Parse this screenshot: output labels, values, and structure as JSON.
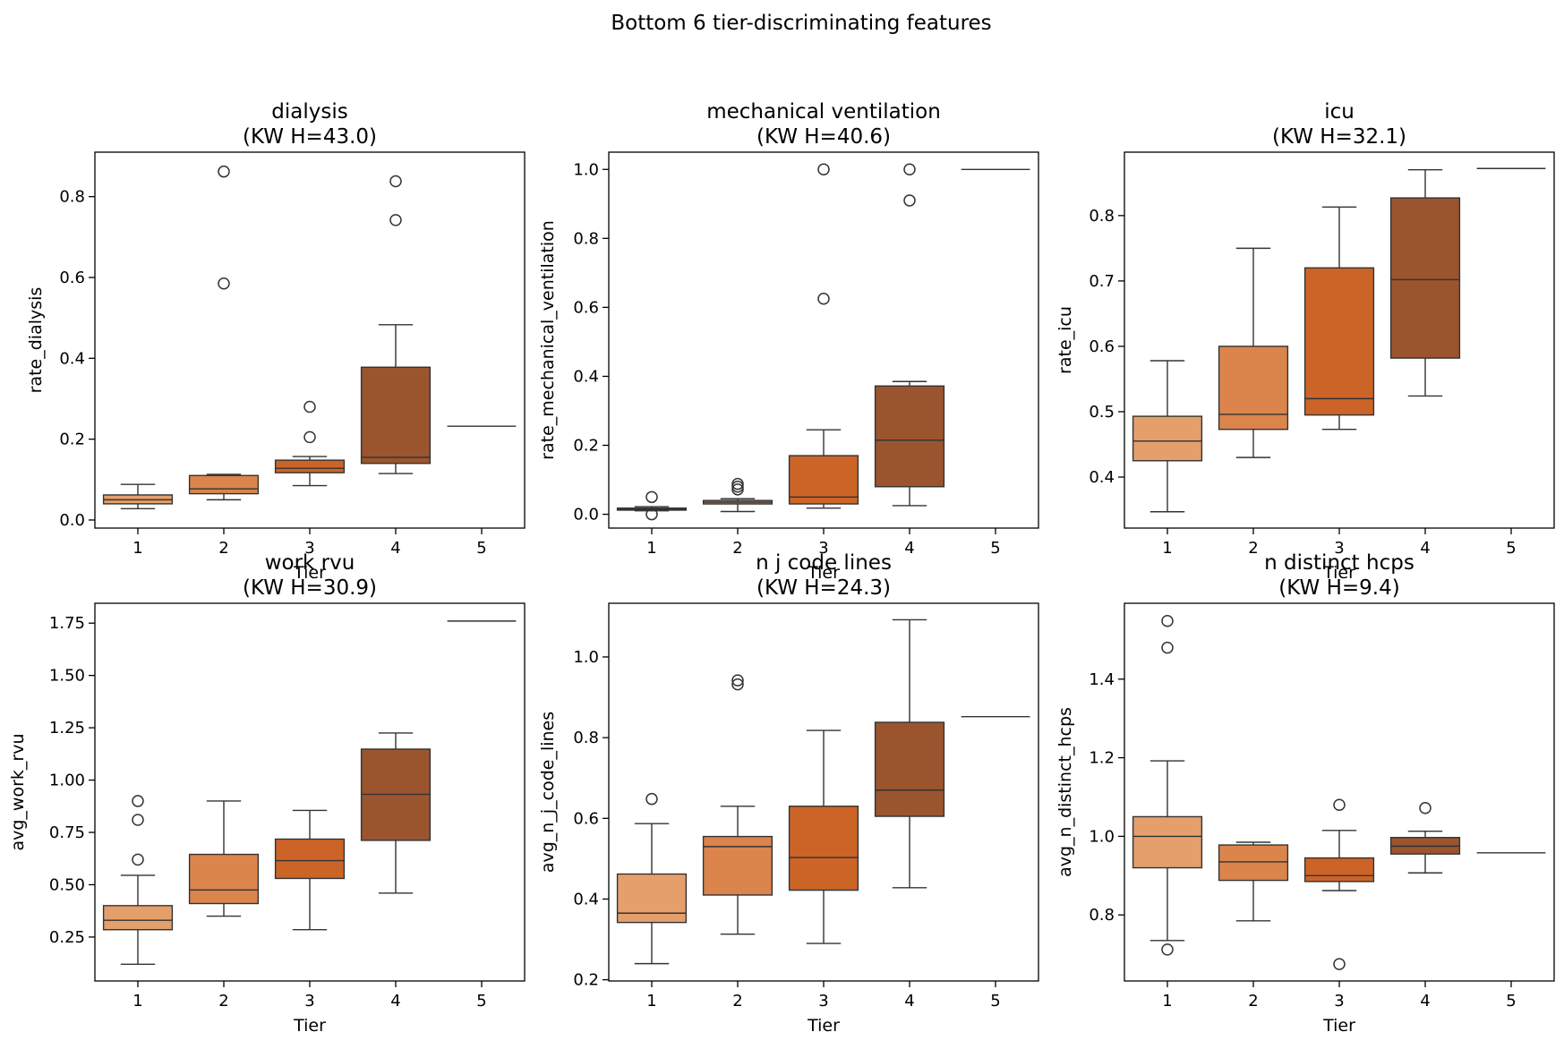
{
  "chart_data": {
    "type": "box",
    "suptitle": "Bottom 6 tier-discriminating features",
    "colors": {
      "1": "#e59f6b",
      "2": "#db844c",
      "3": "#cc6427",
      "4": "#9a552f",
      "5": "#7a3f1e",
      "box_edge": "#333333"
    },
    "panels": [
      {
        "title_line1": "dialysis",
        "title_line2": "(KW H=43.0)",
        "xlabel": "Tier",
        "ylabel": "rate_dialysis",
        "ylim": [
          -0.02,
          0.91
        ],
        "yticks": [
          0.0,
          0.2,
          0.4,
          0.6,
          0.8
        ],
        "ytick_labels": [
          "0.0",
          "0.2",
          "0.4",
          "0.6",
          "0.8"
        ],
        "categories": [
          "1",
          "2",
          "3",
          "4",
          "5"
        ],
        "boxes": [
          {
            "tier": "1",
            "whislo": 0.028,
            "q1": 0.04,
            "med": 0.05,
            "q3": 0.062,
            "whishi": 0.088,
            "fliers": []
          },
          {
            "tier": "2",
            "whislo": 0.05,
            "q1": 0.065,
            "med": 0.077,
            "q3": 0.11,
            "whishi": 0.113,
            "fliers": [
              0.862,
              0.585
            ]
          },
          {
            "tier": "3",
            "whislo": 0.085,
            "q1": 0.117,
            "med": 0.128,
            "q3": 0.148,
            "whishi": 0.157,
            "fliers": [
              0.28,
              0.205
            ]
          },
          {
            "tier": "4",
            "whislo": 0.115,
            "q1": 0.14,
            "med": 0.155,
            "q3": 0.378,
            "whishi": 0.483,
            "fliers": [
              0.838,
              0.742
            ]
          },
          {
            "tier": "5",
            "whislo": 0.232,
            "q1": 0.232,
            "med": 0.232,
            "q3": 0.232,
            "whishi": 0.232,
            "fliers": []
          }
        ]
      },
      {
        "title_line1": "mechanical ventilation",
        "title_line2": "(KW H=40.6)",
        "xlabel": "Tier",
        "ylabel": "rate_mechanical_ventilation",
        "ylim": [
          -0.04,
          1.05
        ],
        "yticks": [
          0.0,
          0.2,
          0.4,
          0.6,
          0.8,
          1.0
        ],
        "ytick_labels": [
          "0.0",
          "0.2",
          "0.4",
          "0.6",
          "0.8",
          "1.0"
        ],
        "categories": [
          "1",
          "2",
          "3",
          "4",
          "5"
        ],
        "boxes": [
          {
            "tier": "1",
            "whislo": 0.01,
            "q1": 0.012,
            "med": 0.015,
            "q3": 0.018,
            "whishi": 0.022,
            "fliers": [
              0.05,
              0.0
            ]
          },
          {
            "tier": "2",
            "whislo": 0.008,
            "q1": 0.03,
            "med": 0.035,
            "q3": 0.04,
            "whishi": 0.045,
            "fliers": [
              0.088,
              0.08,
              0.072
            ]
          },
          {
            "tier": "3",
            "whislo": 0.018,
            "q1": 0.03,
            "med": 0.05,
            "q3": 0.17,
            "whishi": 0.245,
            "fliers": [
              1.0,
              0.625
            ]
          },
          {
            "tier": "4",
            "whislo": 0.025,
            "q1": 0.08,
            "med": 0.215,
            "q3": 0.372,
            "whishi": 0.385,
            "fliers": [
              1.0,
              0.91
            ]
          },
          {
            "tier": "5",
            "whislo": 1.0,
            "q1": 1.0,
            "med": 1.0,
            "q3": 1.0,
            "whishi": 1.0,
            "fliers": []
          }
        ]
      },
      {
        "title_line1": "icu",
        "title_line2": "(KW H=32.1)",
        "xlabel": "Tier",
        "ylabel": "rate_icu",
        "ylim": [
          0.322,
          0.897
        ],
        "yticks": [
          0.4,
          0.5,
          0.6,
          0.7,
          0.8
        ],
        "ytick_labels": [
          "0.4",
          "0.5",
          "0.6",
          "0.7",
          "0.8"
        ],
        "categories": [
          "1",
          "2",
          "3",
          "4",
          "5"
        ],
        "boxes": [
          {
            "tier": "1",
            "whislo": 0.347,
            "q1": 0.425,
            "med": 0.455,
            "q3": 0.493,
            "whishi": 0.578,
            "fliers": []
          },
          {
            "tier": "2",
            "whislo": 0.43,
            "q1": 0.473,
            "med": 0.496,
            "q3": 0.6,
            "whishi": 0.75,
            "fliers": []
          },
          {
            "tier": "3",
            "whislo": 0.473,
            "q1": 0.495,
            "med": 0.52,
            "q3": 0.72,
            "whishi": 0.813,
            "fliers": []
          },
          {
            "tier": "4",
            "whislo": 0.524,
            "q1": 0.582,
            "med": 0.702,
            "q3": 0.827,
            "whishi": 0.87,
            "fliers": []
          },
          {
            "tier": "5",
            "whislo": 0.872,
            "q1": 0.872,
            "med": 0.872,
            "q3": 0.872,
            "whishi": 0.872,
            "fliers": []
          }
        ]
      },
      {
        "title_line1": "work rvu",
        "title_line2": "(KW H=30.9)",
        "xlabel": "Tier",
        "ylabel": "avg_work_rvu",
        "ylim": [
          0.04,
          1.845
        ],
        "yticks": [
          0.25,
          0.5,
          0.75,
          1.0,
          1.25,
          1.5,
          1.75
        ],
        "ytick_labels": [
          "0.25",
          "0.50",
          "0.75",
          "1.00",
          "1.25",
          "1.50",
          "1.75"
        ],
        "categories": [
          "1",
          "2",
          "3",
          "4",
          "5"
        ],
        "boxes": [
          {
            "tier": "1",
            "whislo": 0.12,
            "q1": 0.285,
            "med": 0.33,
            "q3": 0.4,
            "whishi": 0.545,
            "fliers": [
              0.9,
              0.81,
              0.62
            ]
          },
          {
            "tier": "2",
            "whislo": 0.35,
            "q1": 0.41,
            "med": 0.475,
            "q3": 0.645,
            "whishi": 0.9,
            "fliers": []
          },
          {
            "tier": "3",
            "whislo": 0.285,
            "q1": 0.53,
            "med": 0.615,
            "q3": 0.718,
            "whishi": 0.855,
            "fliers": []
          },
          {
            "tier": "4",
            "whislo": 0.46,
            "q1": 0.712,
            "med": 0.932,
            "q3": 1.148,
            "whishi": 1.225,
            "fliers": []
          },
          {
            "tier": "5",
            "whislo": 1.76,
            "q1": 1.76,
            "med": 1.76,
            "q3": 1.76,
            "whishi": 1.76,
            "fliers": []
          }
        ]
      },
      {
        "title_line1": "n j code lines",
        "title_line2": "(KW H=24.3)",
        "xlabel": "Tier",
        "ylabel": "avg_n_j_code_lines",
        "ylim": [
          0.197,
          1.133
        ],
        "yticks": [
          0.2,
          0.4,
          0.6,
          0.8,
          1.0
        ],
        "ytick_labels": [
          "0.2",
          "0.4",
          "0.6",
          "0.8",
          "1.0"
        ],
        "categories": [
          "1",
          "2",
          "3",
          "4",
          "5"
        ],
        "boxes": [
          {
            "tier": "1",
            "whislo": 0.24,
            "q1": 0.342,
            "med": 0.365,
            "q3": 0.462,
            "whishi": 0.587,
            "fliers": [
              0.648
            ]
          },
          {
            "tier": "2",
            "whislo": 0.313,
            "q1": 0.41,
            "med": 0.53,
            "q3": 0.555,
            "whishi": 0.63,
            "fliers": [
              0.942,
              0.932
            ]
          },
          {
            "tier": "3",
            "whislo": 0.29,
            "q1": 0.422,
            "med": 0.503,
            "q3": 0.63,
            "whishi": 0.818,
            "fliers": []
          },
          {
            "tier": "4",
            "whislo": 0.428,
            "q1": 0.605,
            "med": 0.67,
            "q3": 0.838,
            "whishi": 1.092,
            "fliers": []
          },
          {
            "tier": "5",
            "whislo": 0.852,
            "q1": 0.852,
            "med": 0.852,
            "q3": 0.852,
            "whishi": 0.852,
            "fliers": []
          }
        ]
      },
      {
        "title_line1": "n distinct hcps",
        "title_line2": "(KW H=9.4)",
        "xlabel": "Tier",
        "ylabel": "avg_n_distinct_hcps",
        "ylim": [
          0.632,
          1.593
        ],
        "yticks": [
          0.8,
          1.0,
          1.2,
          1.4
        ],
        "ytick_labels": [
          "0.8",
          "1.0",
          "1.2",
          "1.4"
        ],
        "categories": [
          "1",
          "2",
          "3",
          "4",
          "5"
        ],
        "boxes": [
          {
            "tier": "1",
            "whislo": 0.735,
            "q1": 0.92,
            "med": 1.0,
            "q3": 1.05,
            "whishi": 1.192,
            "fliers": [
              1.548,
              1.48,
              0.712
            ]
          },
          {
            "tier": "2",
            "whislo": 0.785,
            "q1": 0.888,
            "med": 0.935,
            "q3": 0.978,
            "whishi": 0.985,
            "fliers": []
          },
          {
            "tier": "3",
            "whislo": 0.862,
            "q1": 0.885,
            "med": 0.9,
            "q3": 0.945,
            "whishi": 1.015,
            "fliers": [
              1.08,
              0.675
            ]
          },
          {
            "tier": "4",
            "whislo": 0.907,
            "q1": 0.955,
            "med": 0.975,
            "q3": 0.997,
            "whishi": 1.013,
            "fliers": [
              1.072
            ]
          },
          {
            "tier": "5",
            "whislo": 0.958,
            "q1": 0.958,
            "med": 0.958,
            "q3": 0.958,
            "whishi": 0.958,
            "fliers": []
          }
        ]
      }
    ]
  }
}
